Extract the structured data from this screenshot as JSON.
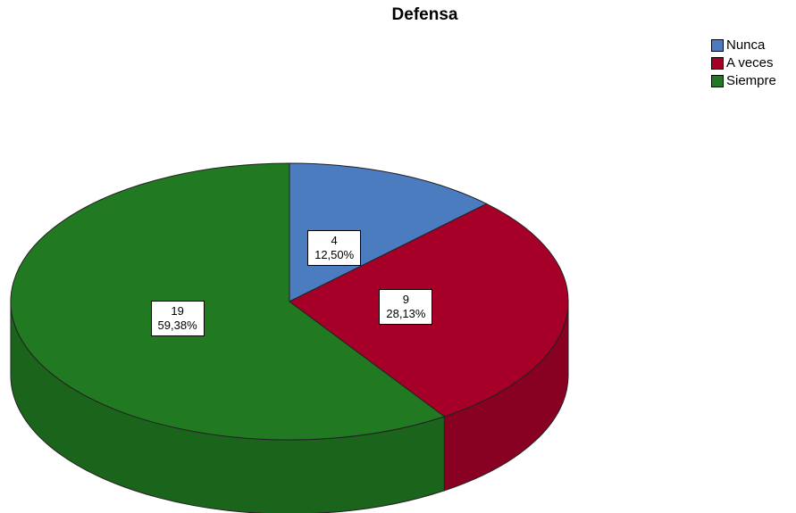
{
  "chart_data": {
    "type": "pie",
    "title": "Defensa",
    "legend_position": "top-right",
    "slices": [
      {
        "name": "Nunca",
        "value": 4,
        "percent": "12,50%",
        "color": "#4a7cbf"
      },
      {
        "name": "A veces",
        "value": 9,
        "percent": "28,13%",
        "color": "#a60029"
      },
      {
        "name": "Siempre",
        "value": 19,
        "percent": "59,38%",
        "color": "#217a21"
      }
    ]
  }
}
